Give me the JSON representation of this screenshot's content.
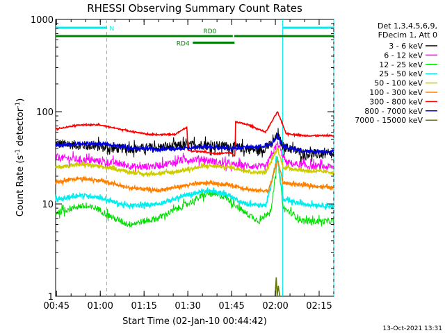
{
  "chart_data": {
    "type": "line",
    "title": "RHESSI Observing Summary Count Rates",
    "xlabel": "Start Time (02-Jan-10 00:44:42)",
    "ylabel_main": "Count Rate (s",
    "ylabel_sup1": "-1",
    "ylabel_mid": " detector",
    "ylabel_sup2": "-1",
    "ylabel_end": ")",
    "yscale": "log",
    "ylim": [
      1,
      1000
    ],
    "xlim_minutes": [
      0,
      95.3
    ],
    "x_ticks": [
      {
        "label": "00:45",
        "t": 0.3
      },
      {
        "label": "01:00",
        "t": 15.3
      },
      {
        "label": "01:15",
        "t": 30.3
      },
      {
        "label": "01:30",
        "t": 45.3
      },
      {
        "label": "01:45",
        "t": 60.3
      },
      {
        "label": "02:00",
        "t": 75.3
      },
      {
        "label": "02:15",
        "t": 90.3
      }
    ],
    "y_ticks": [
      {
        "label": "1",
        "v": 1
      },
      {
        "label": "10",
        "v": 10
      },
      {
        "label": "100",
        "v": 100
      },
      {
        "label": "1000",
        "v": 1000
      }
    ],
    "legend_header": [
      "Det 1,3,4,5,6,9,",
      "FDecim 1, Att 0"
    ],
    "series": [
      {
        "name": "3 - 6 keV",
        "color": "#000000",
        "noise": 0.12,
        "points": [
          [
            0,
            45
          ],
          [
            10,
            43
          ],
          [
            20,
            40
          ],
          [
            30,
            40
          ],
          [
            40,
            42
          ],
          [
            50,
            44
          ],
          [
            60,
            42
          ],
          [
            70,
            38
          ],
          [
            74,
            44
          ],
          [
            76,
            55
          ],
          [
            78,
            42
          ],
          [
            85,
            35
          ],
          [
            95.3,
            34
          ]
        ]
      },
      {
        "name": "6 - 12 keV",
        "color": "#ff00ff",
        "noise": 0.09,
        "points": [
          [
            0,
            32
          ],
          [
            10,
            30
          ],
          [
            20,
            28
          ],
          [
            28,
            25
          ],
          [
            35,
            26
          ],
          [
            44,
            30
          ],
          [
            50,
            31
          ],
          [
            58,
            27
          ],
          [
            66,
            26
          ],
          [
            72,
            25
          ],
          [
            76,
            45
          ],
          [
            79,
            28
          ],
          [
            85,
            26
          ],
          [
            95.3,
            25
          ]
        ]
      },
      {
        "name": "12 - 25 keV",
        "color": "#00dd00",
        "noise": 0.08,
        "points": [
          [
            0,
            8
          ],
          [
            8,
            9.5
          ],
          [
            14,
            9
          ],
          [
            20,
            7
          ],
          [
            25,
            6
          ],
          [
            35,
            7
          ],
          [
            45,
            10
          ],
          [
            52,
            13
          ],
          [
            58,
            12
          ],
          [
            65,
            8
          ],
          [
            70,
            6.5
          ],
          [
            74,
            9
          ],
          [
            76,
            32
          ],
          [
            78,
            9
          ],
          [
            85,
            6.5
          ],
          [
            95.3,
            6.5
          ]
        ]
      },
      {
        "name": "25 - 50 keV",
        "color": "#00eeee",
        "noise": 0.05,
        "points": [
          [
            0,
            11
          ],
          [
            8,
            12.5
          ],
          [
            14,
            12
          ],
          [
            20,
            10.5
          ],
          [
            25,
            9.5
          ],
          [
            35,
            10
          ],
          [
            45,
            12.5
          ],
          [
            52,
            14
          ],
          [
            58,
            13
          ],
          [
            65,
            10
          ],
          [
            72,
            9.5
          ],
          [
            76,
            33
          ],
          [
            78,
            11
          ],
          [
            85,
            10
          ],
          [
            95.3,
            9.5
          ]
        ]
      },
      {
        "name": "50 - 100 keV",
        "color": "#cccc00",
        "noise": 0.04,
        "points": [
          [
            0,
            25
          ],
          [
            10,
            27
          ],
          [
            20,
            24
          ],
          [
            30,
            21
          ],
          [
            40,
            22
          ],
          [
            52,
            26
          ],
          [
            60,
            25
          ],
          [
            68,
            22
          ],
          [
            72,
            22
          ],
          [
            76,
            40
          ],
          [
            78,
            25
          ],
          [
            85,
            23
          ],
          [
            95.3,
            22
          ]
        ]
      },
      {
        "name": "100 - 300 keV",
        "color": "#ff8000",
        "noise": 0.04,
        "points": [
          [
            0,
            17
          ],
          [
            8,
            19
          ],
          [
            15,
            18
          ],
          [
            25,
            15
          ],
          [
            35,
            14
          ],
          [
            45,
            16
          ],
          [
            52,
            17
          ],
          [
            60,
            16
          ],
          [
            68,
            14
          ],
          [
            73,
            14
          ],
          [
            76,
            30
          ],
          [
            78,
            17
          ],
          [
            85,
            16
          ],
          [
            95.3,
            15
          ]
        ]
      },
      {
        "name": "300 - 800 keV",
        "color": "#ff0000",
        "noise": 0.015,
        "points": [
          [
            0,
            65
          ],
          [
            8,
            72
          ],
          [
            15,
            72
          ],
          [
            25,
            62
          ],
          [
            33,
            56
          ],
          [
            41,
            57
          ],
          [
            45,
            68
          ],
          [
            45.3,
            38
          ],
          [
            50,
            37
          ],
          [
            55,
            35
          ],
          [
            60,
            36
          ],
          [
            61.5,
            33
          ],
          [
            61.6,
            78
          ],
          [
            66,
            72
          ],
          [
            72,
            60
          ],
          [
            76,
            100
          ],
          [
            79,
            58
          ],
          [
            85,
            55
          ],
          [
            95.3,
            55
          ]
        ]
      },
      {
        "name": "800 - 7000 keV",
        "color": "#0000dd",
        "noise": 0.04,
        "points": [
          [
            0,
            43
          ],
          [
            8,
            45
          ],
          [
            15,
            45
          ],
          [
            25,
            41
          ],
          [
            35,
            39
          ],
          [
            45,
            40
          ],
          [
            52,
            42
          ],
          [
            60,
            40
          ],
          [
            70,
            42
          ],
          [
            74,
            44
          ],
          [
            76,
            55
          ],
          [
            78,
            42
          ],
          [
            85,
            37
          ],
          [
            95.3,
            37
          ]
        ]
      },
      {
        "name": "7000 - 15000 keV",
        "color": "#667700",
        "noise": 0.0,
        "points": [
          [
            75.2,
            1
          ],
          [
            75.6,
            1.6
          ],
          [
            75.9,
            1
          ],
          [
            76.3,
            1.3
          ],
          [
            76.8,
            1
          ]
        ]
      }
    ],
    "attenuator_bar": {
      "label": "N",
      "color": "#00eeee",
      "segments": [
        [
          0,
          17.5
        ],
        [
          77.8,
          95.3
        ]
      ]
    },
    "decimation_bars": [
      {
        "label": "RD0",
        "color": "#008000",
        "level": 660,
        "segments": [
          [
            0,
            60.7
          ],
          [
            61.2,
            95.3
          ]
        ]
      },
      {
        "label": "RD4",
        "color": "#008000",
        "level": 560,
        "segments": [
          [
            47,
            61.3
          ]
        ]
      }
    ],
    "vertical_markers": [
      {
        "t": 17.5,
        "color": "#00eeee",
        "style": "dashed"
      },
      {
        "t": 77.8,
        "color": "#00eeee",
        "style": "solid"
      },
      {
        "t": 95.3,
        "color": "#00eeee",
        "style": "dashed"
      }
    ]
  },
  "footer": {
    "timestamp": "13-Oct-2021 13:31"
  }
}
